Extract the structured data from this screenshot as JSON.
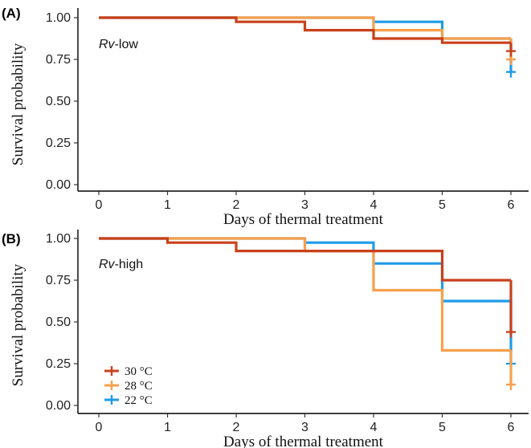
{
  "chart_data": [
    {
      "type": "line",
      "step": true,
      "panel_tag": "(A)",
      "inset_label_italic": "Rv",
      "inset_label_rest": "-low",
      "xlabel": "Days of thermal treatment",
      "ylabel": "Survival probability",
      "xlim": [
        0,
        6
      ],
      "ylim": [
        0,
        1
      ],
      "xticks": [
        "0",
        "1",
        "2",
        "3",
        "4",
        "5",
        "6"
      ],
      "yticks": [
        "0.00",
        "0.25",
        "0.50",
        "0.75",
        "1.00"
      ],
      "grid": false,
      "series": [
        {
          "color": "#c8411b",
          "x": [
            0,
            2,
            3,
            4,
            5,
            6
          ],
          "y": [
            1.0,
            0.975,
            0.925,
            0.875,
            0.85,
            0.85
          ],
          "censor": {
            "x": 6,
            "y": 0.8
          }
        },
        {
          "color": "#f7a04c",
          "x": [
            0,
            2,
            4,
            5,
            6
          ],
          "y": [
            1.0,
            1.0,
            0.925,
            0.875,
            0.875
          ],
          "censor": {
            "x": 6,
            "y": 0.75
          }
        },
        {
          "color": "#1f9be8",
          "x": [
            0,
            4,
            5,
            6
          ],
          "y": [
            1.0,
            0.975,
            0.875,
            0.875
          ],
          "censor": {
            "x": 6,
            "y": 0.675
          }
        }
      ]
    },
    {
      "type": "line",
      "step": true,
      "panel_tag": "(B)",
      "inset_label_italic": "Rv",
      "inset_label_rest": "-high",
      "xlabel": "Days of thermal treatment",
      "ylabel": "Survival probability",
      "xlim": [
        0,
        6
      ],
      "ylim": [
        0,
        1
      ],
      "xticks": [
        "0",
        "1",
        "2",
        "3",
        "4",
        "5",
        "6"
      ],
      "yticks": [
        "0.00",
        "0.25",
        "0.50",
        "0.75",
        "1.00"
      ],
      "grid": false,
      "legend_position": "bottom-left",
      "series": [
        {
          "name": "30 °C",
          "color": "#c8411b",
          "x": [
            0,
            1,
            2,
            5,
            6
          ],
          "y": [
            1.0,
            0.975,
            0.925,
            0.75,
            0.75
          ],
          "censor": {
            "x": 6,
            "y": 0.44
          }
        },
        {
          "name": "28 °C",
          "color": "#f7a04c",
          "x": [
            0,
            3,
            4,
            5,
            6
          ],
          "y": [
            1.0,
            0.925,
            0.69,
            0.33,
            0.33
          ],
          "censor": {
            "x": 6,
            "y": 0.125
          }
        },
        {
          "name": "22 °C",
          "color": "#1f9be8",
          "x": [
            0,
            3,
            4,
            5,
            6
          ],
          "y": [
            1.0,
            0.975,
            0.85,
            0.625,
            0.625
          ],
          "censor": {
            "x": 6,
            "y": 0.25
          }
        }
      ]
    }
  ]
}
